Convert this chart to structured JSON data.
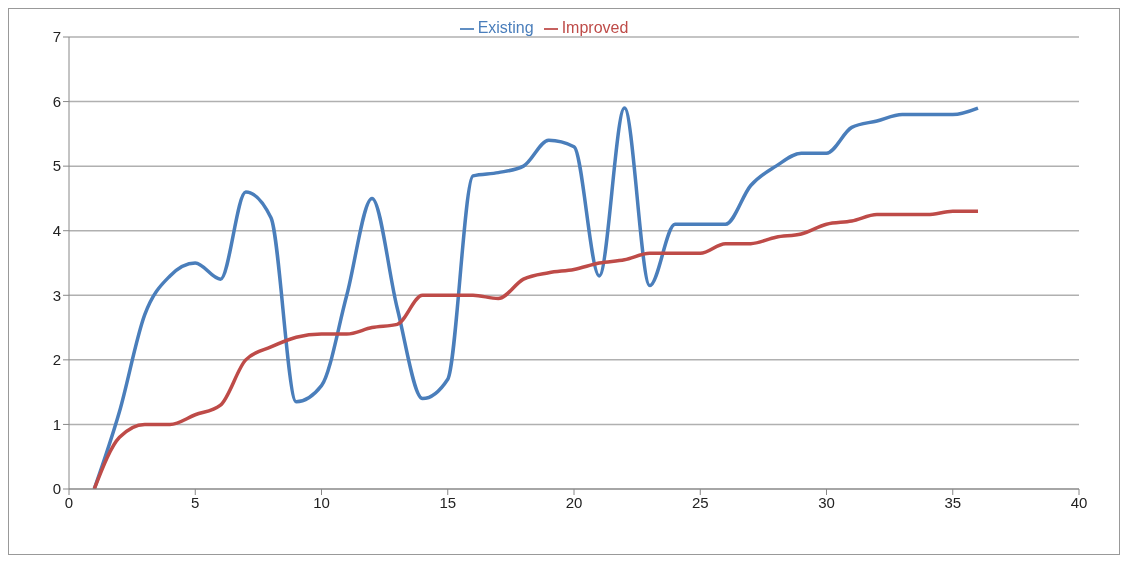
{
  "chart_data": {
    "type": "line",
    "x": [
      1,
      2,
      3,
      4,
      5,
      6,
      7,
      8,
      9,
      10,
      11,
      12,
      13,
      14,
      15,
      16,
      17,
      18,
      19,
      20,
      21,
      22,
      23,
      24,
      25,
      26,
      27,
      28,
      29,
      30,
      31,
      32,
      33,
      34,
      35,
      36
    ],
    "series": [
      {
        "name": "Existing",
        "color": "#4a7ebb",
        "values": [
          0,
          1.2,
          2.7,
          3.3,
          3.5,
          3.25,
          4.6,
          4.2,
          1.35,
          1.6,
          3.0,
          4.5,
          2.8,
          1.4,
          1.7,
          4.85,
          4.9,
          5.0,
          5.4,
          5.3,
          3.3,
          5.9,
          3.15,
          4.1,
          4.1,
          4.1,
          4.7,
          5.0,
          5.2,
          5.2,
          5.6,
          5.7,
          5.8,
          5.8,
          5.8,
          5.9
        ]
      },
      {
        "name": "Improved",
        "color": "#be4b48",
        "values": [
          0,
          0.8,
          1.0,
          1.0,
          1.15,
          1.3,
          2.0,
          2.2,
          2.35,
          2.4,
          2.4,
          2.5,
          2.55,
          3.0,
          3.0,
          3.0,
          2.95,
          3.25,
          3.35,
          3.4,
          3.5,
          3.55,
          3.65,
          3.65,
          3.65,
          3.8,
          3.8,
          3.9,
          3.95,
          4.1,
          4.15,
          4.25,
          4.25,
          4.25,
          4.3,
          4.3
        ]
      }
    ],
    "xlim": [
      0,
      40
    ],
    "xticks": [
      0,
      5,
      10,
      15,
      20,
      25,
      30,
      35,
      40
    ],
    "ylim": [
      0,
      7
    ],
    "yticks": [
      0,
      1,
      2,
      3,
      4,
      5,
      6,
      7
    ],
    "grid": "y",
    "legend": "top",
    "marker": "none",
    "line_style": "solid"
  }
}
